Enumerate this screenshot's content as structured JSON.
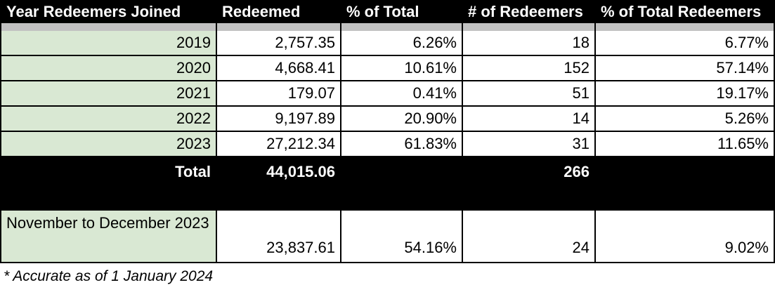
{
  "table": {
    "headers": [
      "Year Redeemers Joined",
      "Redeemed",
      "% of Total",
      "# of Redeemers",
      "% of Total Redeemers"
    ],
    "rows": [
      [
        "2019",
        "2,757.35",
        "6.26%",
        "18",
        "6.77%"
      ],
      [
        "2020",
        "4,668.41",
        "10.61%",
        "152",
        "57.14%"
      ],
      [
        "2021",
        "179.07",
        "0.41%",
        "51",
        "19.17%"
      ],
      [
        "2022",
        "9,197.89",
        "20.90%",
        "14",
        "5.26%"
      ],
      [
        "2023",
        "27,212.34",
        "61.83%",
        "31",
        "11.65%"
      ]
    ],
    "total_row": [
      "Total",
      "44,015.06",
      "",
      "266",
      ""
    ],
    "special_row": [
      "November to December 2023",
      "23,837.61",
      "54.16%",
      "24",
      "9.02%"
    ],
    "footnote": "* Accurate as of 1 January 2024"
  },
  "colors": {
    "header_bg": "#000000",
    "row_label_bg": "#d9e8d3",
    "divider": "#c1c1c1",
    "header_text": "#ffffff"
  }
}
